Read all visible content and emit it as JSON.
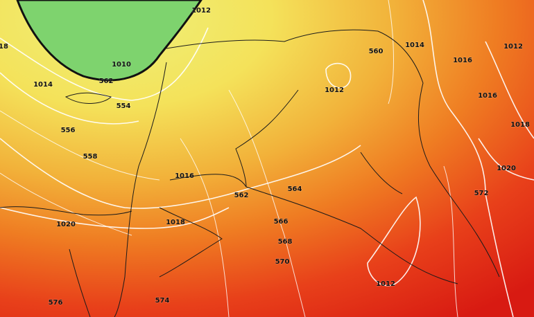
{
  "map": {
    "labels": [
      "1012",
      "1010",
      "562",
      "554",
      "1014",
      "556",
      "558",
      "18",
      "1016",
      "562",
      "564",
      "1012",
      "560",
      "1014",
      "1012",
      "1016",
      "1016",
      "1018",
      "1020",
      "572",
      "1020",
      "1018",
      "566",
      "568",
      "570",
      "1012",
      "576",
      "574"
    ]
  }
}
